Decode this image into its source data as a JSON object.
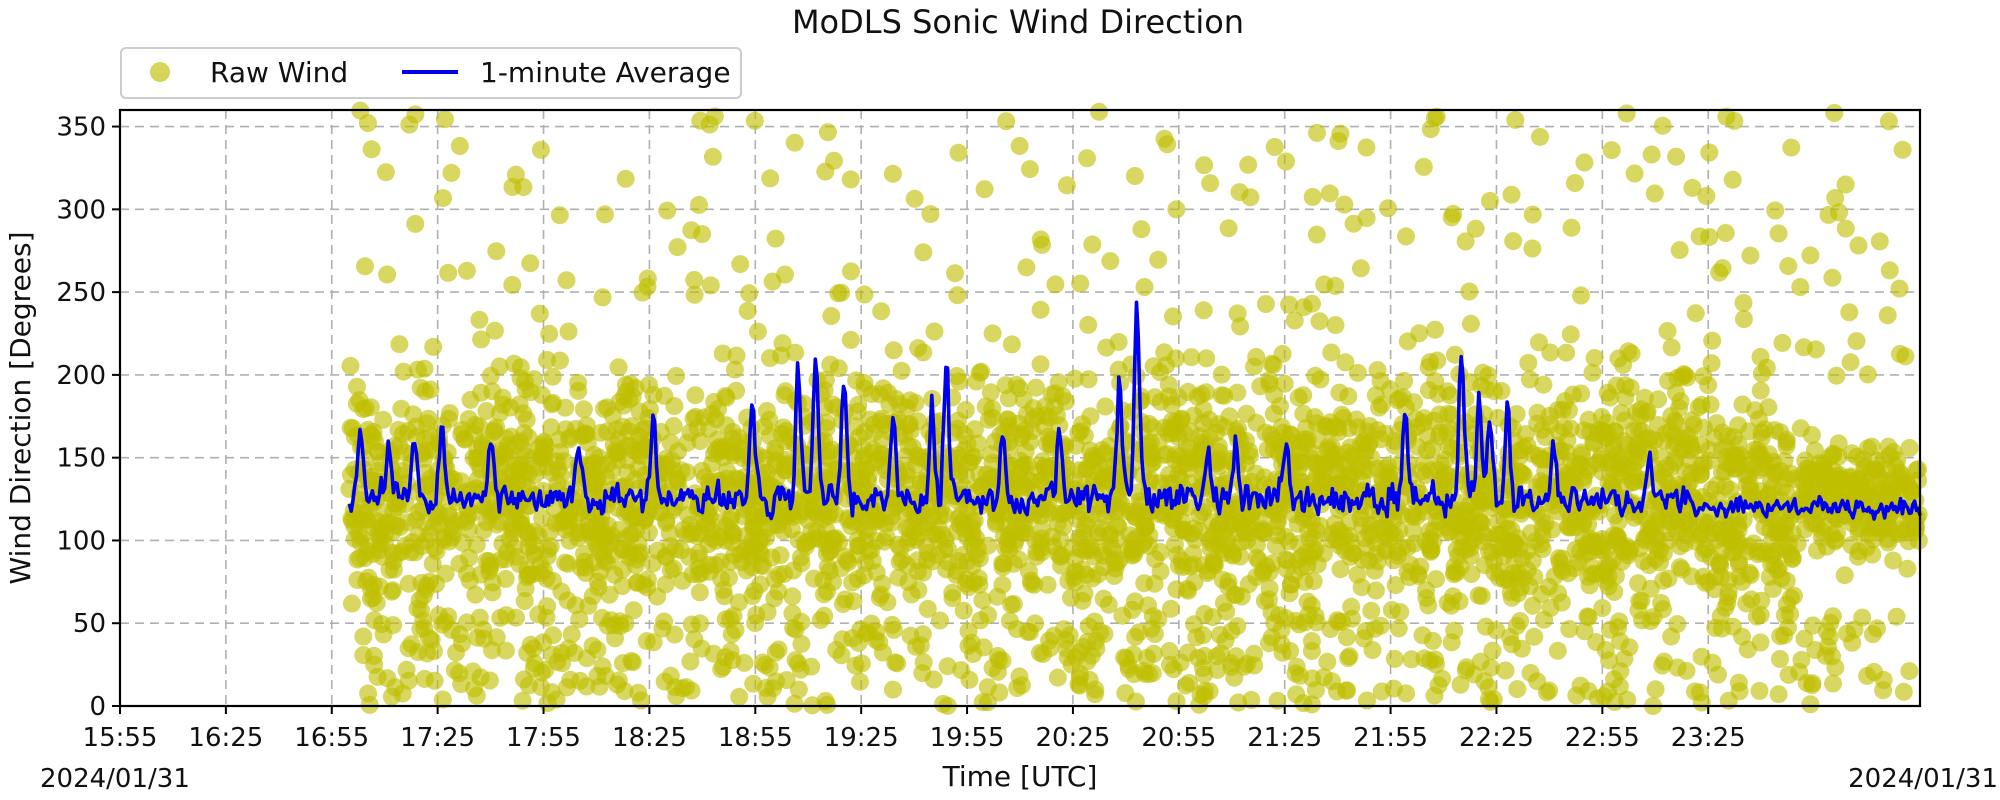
{
  "chart_data": {
    "type": "scatter",
    "title": "MoDLS Sonic Wind Direction",
    "xlabel": "Time [UTC]",
    "ylabel": "Wind Direction [Degrees]",
    "x_tick_labels": [
      "15:55",
      "16:25",
      "16:55",
      "17:25",
      "17:55",
      "18:25",
      "18:55",
      "19:25",
      "19:55",
      "20:25",
      "20:55",
      "21:25",
      "21:55",
      "22:25",
      "22:55",
      "23:25"
    ],
    "date_start_label": "2024/01/31",
    "date_end_label": "2024/01/31",
    "x_range": [
      "15:55",
      "00:25"
    ],
    "y_ticks": [
      0,
      50,
      100,
      150,
      200,
      250,
      300,
      350
    ],
    "ylim": [
      0,
      360
    ],
    "grid": true,
    "legend_position": "above-left",
    "series": [
      {
        "name": "Raw Wind",
        "kind": "scatter",
        "color": "#bfbf00",
        "time_range": [
          "17:00",
          "00:25"
        ],
        "typical_range_deg": [
          60,
          190
        ],
        "outlier_range_deg": [
          0,
          360
        ]
      },
      {
        "name": "1-minute Average",
        "kind": "line",
        "color": "#0000ee",
        "time_range": [
          "17:00",
          "00:25"
        ],
        "baseline_deg": 125,
        "spikes": [
          {
            "time": "17:03",
            "value": 170
          },
          {
            "time": "17:11",
            "value": 160
          },
          {
            "time": "17:18",
            "value": 165
          },
          {
            "time": "17:26",
            "value": 175
          },
          {
            "time": "17:40",
            "value": 168
          },
          {
            "time": "18:05",
            "value": 162
          },
          {
            "time": "18:26",
            "value": 180
          },
          {
            "time": "18:54",
            "value": 192
          },
          {
            "time": "19:07",
            "value": 210
          },
          {
            "time": "19:12",
            "value": 215
          },
          {
            "time": "19:20",
            "value": 205
          },
          {
            "time": "19:34",
            "value": 180
          },
          {
            "time": "19:45",
            "value": 185
          },
          {
            "time": "19:49",
            "value": 215
          },
          {
            "time": "20:05",
            "value": 170
          },
          {
            "time": "20:21",
            "value": 175
          },
          {
            "time": "20:38",
            "value": 200
          },
          {
            "time": "20:43",
            "value": 250
          },
          {
            "time": "21:03",
            "value": 165
          },
          {
            "time": "21:11",
            "value": 160
          },
          {
            "time": "21:25",
            "value": 165
          },
          {
            "time": "21:59",
            "value": 182
          },
          {
            "time": "22:15",
            "value": 220
          },
          {
            "time": "22:20",
            "value": 195
          },
          {
            "time": "22:23",
            "value": 180
          },
          {
            "time": "22:28",
            "value": 185
          },
          {
            "time": "22:41",
            "value": 160
          },
          {
            "time": "23:08",
            "value": 155
          },
          {
            "time": "23:55",
            "value": 140
          }
        ]
      }
    ]
  }
}
